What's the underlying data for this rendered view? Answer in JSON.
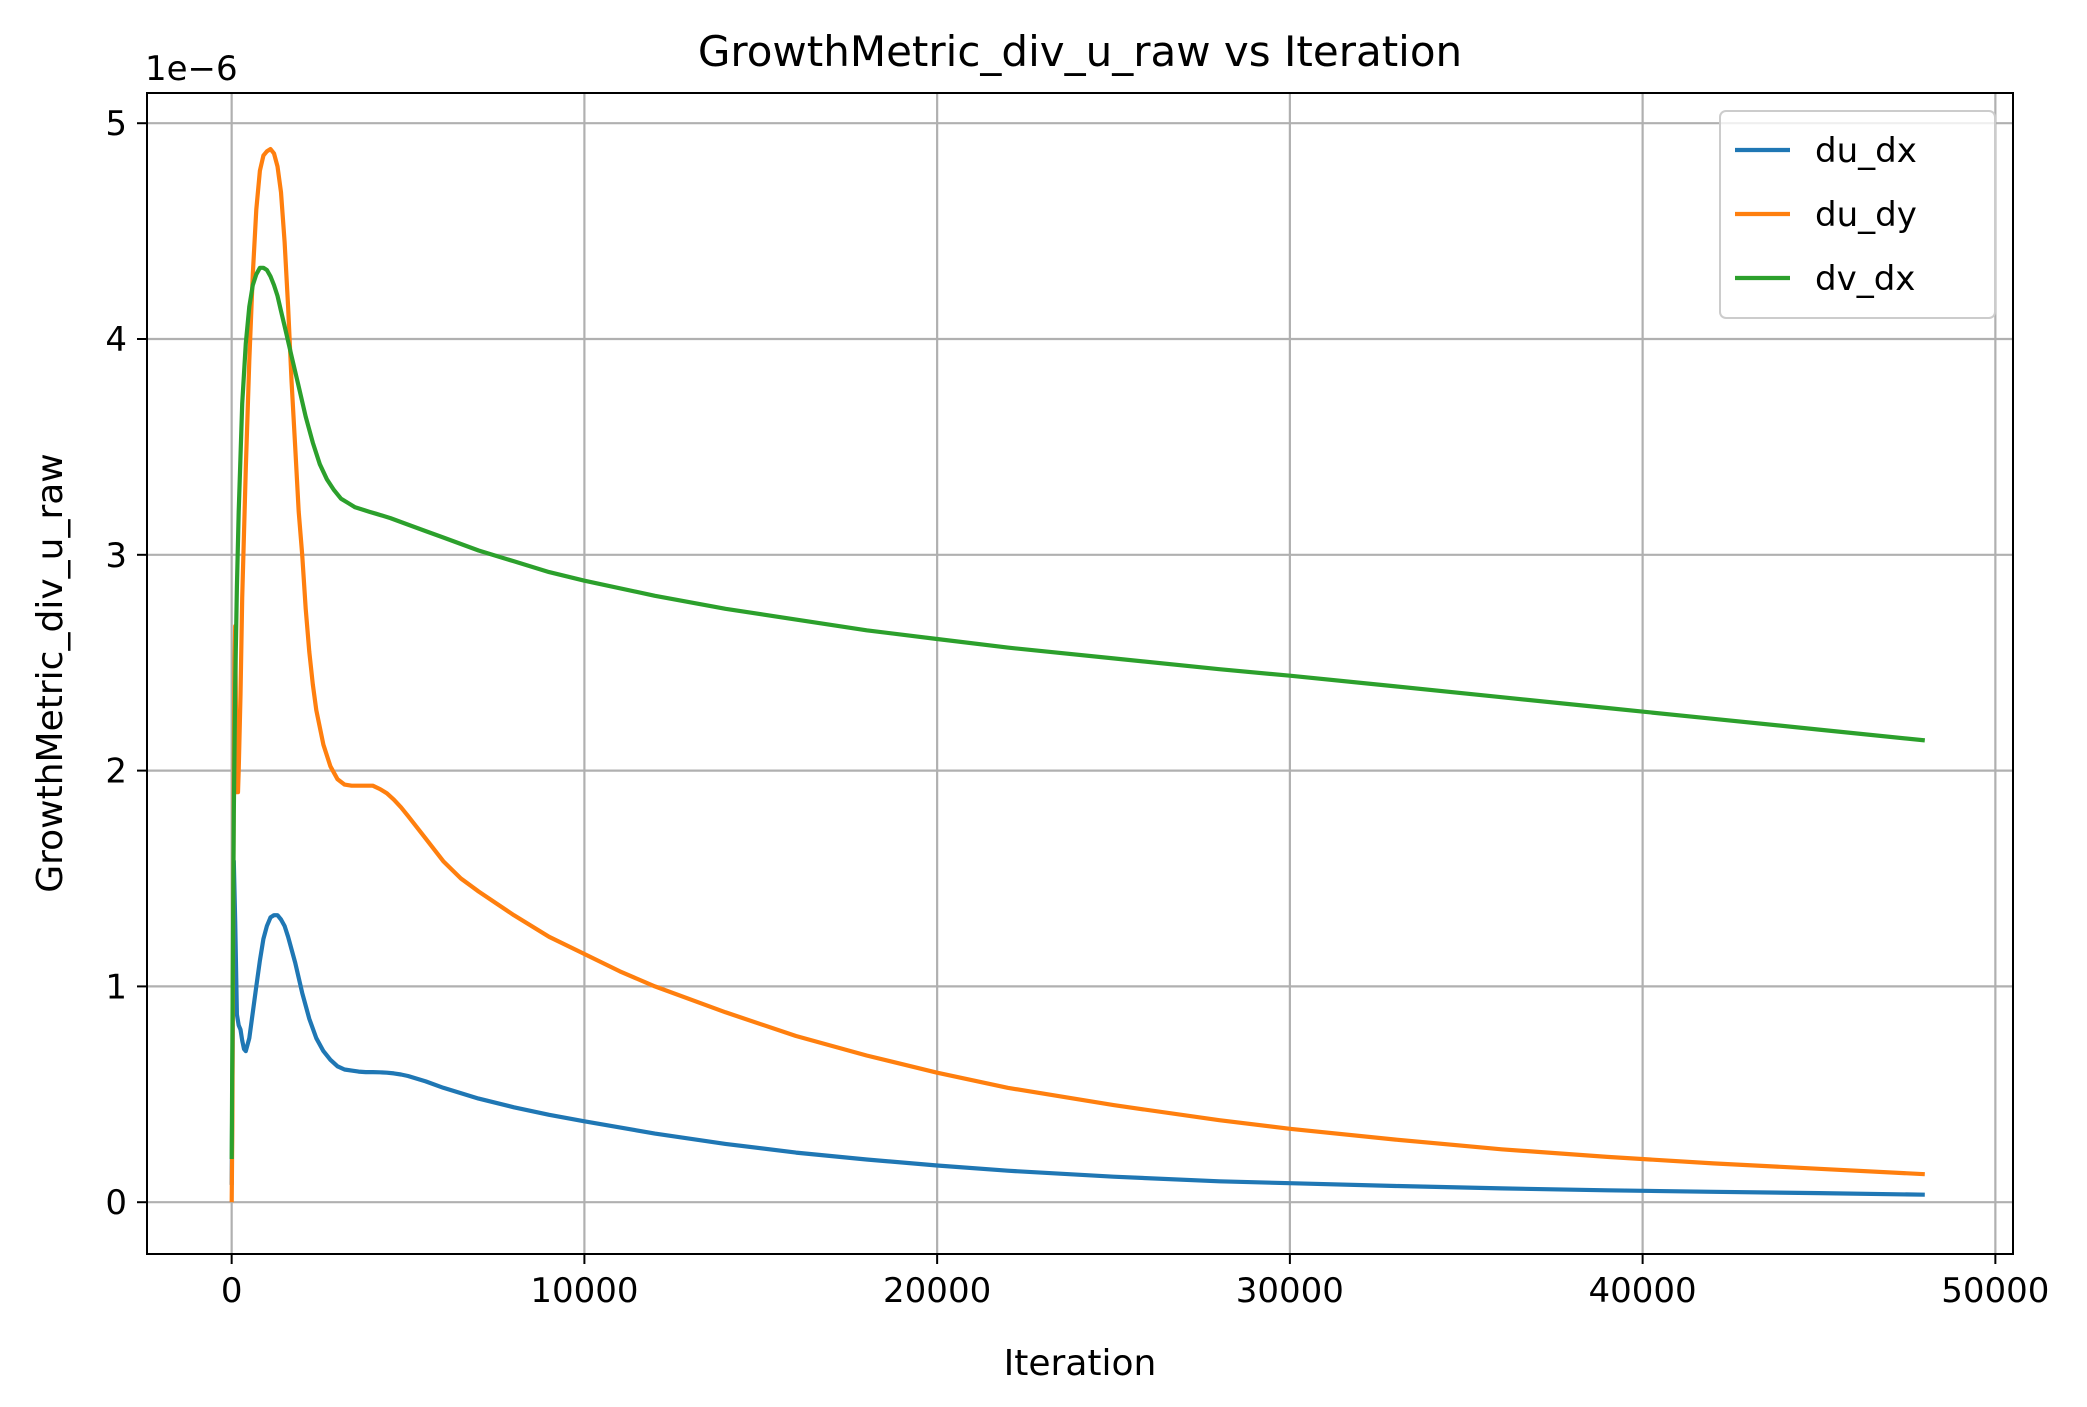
{
  "chart_data": {
    "type": "line",
    "title": "GrowthMetric_div_u_raw vs Iteration",
    "xlabel": "Iteration",
    "ylabel": "GrowthMetric_div_u_raw",
    "y_offset_label": "1e−6",
    "xlim": [
      -2400,
      50500
    ],
    "ylim": [
      -0.24,
      5.14
    ],
    "xticks": [
      0,
      10000,
      20000,
      30000,
      40000,
      50000
    ],
    "xtick_labels": [
      "0",
      "10000",
      "20000",
      "30000",
      "40000",
      "50000"
    ],
    "yticks": [
      0,
      1,
      2,
      3,
      4,
      5
    ],
    "ytick_labels": [
      "0",
      "1",
      "2",
      "3",
      "4",
      "5"
    ],
    "grid": true,
    "legend_position": "top-right",
    "series": [
      {
        "name": "du_dx",
        "color": "#1f77b4",
        "x": [
          0,
          30,
          60,
          100,
          150,
          200,
          250,
          300,
          350,
          400,
          500,
          600,
          700,
          800,
          900,
          1000,
          1100,
          1200,
          1300,
          1400,
          1500,
          1600,
          1800,
          2000,
          2200,
          2400,
          2600,
          2800,
          3000,
          3200,
          3400,
          3600,
          3800,
          4000,
          4200,
          4400,
          4600,
          4800,
          5000,
          5500,
          6000,
          7000,
          8000,
          9000,
          10000,
          12000,
          14000,
          16000,
          18000,
          20000,
          22000,
          25000,
          28000,
          30000,
          33000,
          36000,
          39000,
          42000,
          45000,
          48000
        ],
        "values": [
          0.08,
          0.8,
          1.58,
          1.3,
          0.87,
          0.82,
          0.8,
          0.75,
          0.71,
          0.7,
          0.76,
          0.88,
          1.0,
          1.12,
          1.22,
          1.28,
          1.32,
          1.33,
          1.33,
          1.31,
          1.28,
          1.23,
          1.11,
          0.97,
          0.85,
          0.76,
          0.7,
          0.66,
          0.63,
          0.615,
          0.61,
          0.605,
          0.603,
          0.603,
          0.602,
          0.6,
          0.597,
          0.592,
          0.585,
          0.56,
          0.53,
          0.48,
          0.44,
          0.405,
          0.375,
          0.318,
          0.27,
          0.23,
          0.198,
          0.17,
          0.146,
          0.118,
          0.097,
          0.088,
          0.075,
          0.064,
          0.055,
          0.048,
          0.042,
          0.035
        ]
      },
      {
        "name": "du_dy",
        "color": "#ff7f0e",
        "x": [
          0,
          20,
          40,
          60,
          80,
          100,
          120,
          150,
          180,
          200,
          250,
          300,
          400,
          500,
          600,
          700,
          800,
          900,
          1000,
          1100,
          1200,
          1300,
          1400,
          1500,
          1600,
          1700,
          1800,
          1900,
          2000,
          2100,
          2200,
          2300,
          2400,
          2600,
          2800,
          3000,
          3200,
          3400,
          3600,
          3800,
          4000,
          4200,
          4400,
          4600,
          4800,
          5000,
          5500,
          6000,
          6500,
          7000,
          8000,
          9000,
          10000,
          11000,
          12000,
          14000,
          16000,
          18000,
          20000,
          22000,
          25000,
          28000,
          30000,
          33000,
          36000,
          39000,
          42000,
          45000,
          48000
        ],
        "values": [
          0.0,
          0.4,
          1.2,
          2.0,
          2.5,
          2.67,
          2.3,
          1.9,
          1.9,
          2.0,
          2.35,
          2.8,
          3.4,
          3.9,
          4.3,
          4.6,
          4.78,
          4.85,
          4.87,
          4.88,
          4.86,
          4.8,
          4.68,
          4.45,
          4.15,
          3.8,
          3.5,
          3.2,
          3.0,
          2.75,
          2.55,
          2.4,
          2.28,
          2.12,
          2.02,
          1.96,
          1.935,
          1.93,
          1.93,
          1.93,
          1.93,
          1.915,
          1.895,
          1.865,
          1.83,
          1.79,
          1.685,
          1.58,
          1.5,
          1.44,
          1.33,
          1.23,
          1.15,
          1.07,
          1.0,
          0.88,
          0.77,
          0.68,
          0.6,
          0.53,
          0.45,
          0.38,
          0.34,
          0.29,
          0.245,
          0.21,
          0.18,
          0.155,
          0.13
        ]
      },
      {
        "name": "dv_dx",
        "color": "#2ca02c",
        "x": [
          0,
          30,
          60,
          100,
          150,
          200,
          300,
          400,
          500,
          600,
          700,
          800,
          900,
          1000,
          1100,
          1200,
          1300,
          1400,
          1500,
          1700,
          1900,
          2100,
          2300,
          2500,
          2700,
          2900,
          3100,
          3300,
          3500,
          3700,
          3900,
          4100,
          4500,
          5000,
          5500,
          6000,
          7000,
          8000,
          9000,
          10000,
          12000,
          14000,
          16000,
          18000,
          20000,
          22000,
          25000,
          28000,
          30000,
          33000,
          36000,
          39000,
          42000,
          45000,
          48000
        ],
        "values": [
          0.2,
          1.0,
          1.8,
          2.4,
          2.85,
          3.2,
          3.7,
          3.98,
          4.15,
          4.25,
          4.3,
          4.33,
          4.33,
          4.32,
          4.29,
          4.25,
          4.2,
          4.13,
          4.06,
          3.92,
          3.78,
          3.64,
          3.52,
          3.42,
          3.35,
          3.3,
          3.26,
          3.24,
          3.22,
          3.21,
          3.2,
          3.19,
          3.17,
          3.14,
          3.11,
          3.08,
          3.02,
          2.97,
          2.92,
          2.88,
          2.81,
          2.75,
          2.7,
          2.65,
          2.61,
          2.57,
          2.52,
          2.47,
          2.44,
          2.39,
          2.34,
          2.29,
          2.24,
          2.19,
          2.14
        ]
      }
    ]
  }
}
